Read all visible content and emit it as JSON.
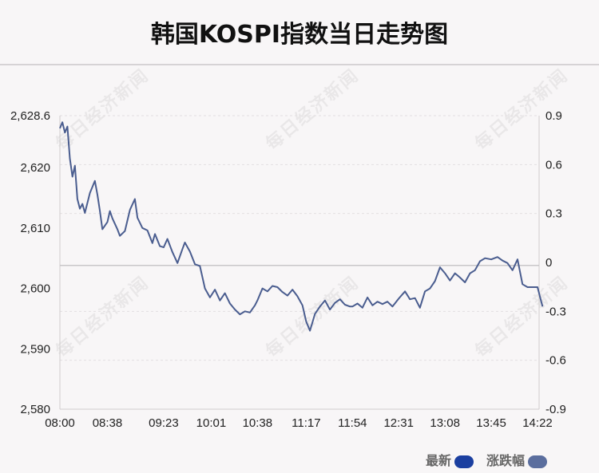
{
  "title": "韩国KOSPI指数当日走势图",
  "legend": [
    {
      "label": "最新",
      "color": "#1b3fa0"
    },
    {
      "label": "涨跌幅",
      "color": "#5b6e9e"
    }
  ],
  "watermark": "每日经济新闻",
  "chart_data": {
    "type": "line",
    "x_ticks": [
      "08:00",
      "08:38",
      "09:23",
      "10:01",
      "10:38",
      "11:17",
      "11:54",
      "12:31",
      "13:08",
      "13:45",
      "14:22"
    ],
    "y_left_ticks": [
      "2,580",
      "2,590",
      "2,600",
      "2,610",
      "2,620",
      "2,628.6"
    ],
    "y_left_values": [
      2580,
      2590,
      2600,
      2610,
      2620,
      2628.6
    ],
    "y_right_ticks": [
      "0.9",
      "0.6",
      "0.3",
      "0",
      "-0.3",
      "-0.6",
      "-0.9"
    ],
    "y_right_values": [
      0.9,
      0.6,
      0.3,
      0,
      -0.3,
      -0.6,
      -0.9
    ],
    "ylim_left": [
      2580,
      2628.6
    ],
    "ylim_right": [
      -0.9,
      0.9
    ],
    "reference_level": 2603.8,
    "line_color": "#4a5d8f",
    "grid": "dashed horizontal",
    "points": [
      [
        "08:00",
        2626.5
      ],
      [
        "08:02",
        2627.5
      ],
      [
        "08:04",
        2625.8
      ],
      [
        "08:06",
        2626.8
      ],
      [
        "08:08",
        2621.5
      ],
      [
        "08:10",
        2618.5
      ],
      [
        "08:12",
        2620.3
      ],
      [
        "08:14",
        2614.8
      ],
      [
        "08:16",
        2613.2
      ],
      [
        "08:18",
        2614.0
      ],
      [
        "08:20",
        2612.5
      ],
      [
        "08:24",
        2615.8
      ],
      [
        "08:28",
        2617.8
      ],
      [
        "08:30",
        2615.5
      ],
      [
        "08:32",
        2612.8
      ],
      [
        "08:34",
        2609.8
      ],
      [
        "08:38",
        2611.0
      ],
      [
        "08:40",
        2612.8
      ],
      [
        "08:42",
        2611.6
      ],
      [
        "08:46",
        2609.8
      ],
      [
        "08:48",
        2608.7
      ],
      [
        "08:52",
        2609.5
      ],
      [
        "08:56",
        2613.0
      ],
      [
        "09:00",
        2614.8
      ],
      [
        "09:02",
        2611.7
      ],
      [
        "09:06",
        2610.0
      ],
      [
        "09:10",
        2609.6
      ],
      [
        "09:14",
        2607.5
      ],
      [
        "09:16",
        2609.0
      ],
      [
        "09:20",
        2607.0
      ],
      [
        "09:23",
        2606.8
      ],
      [
        "09:26",
        2608.2
      ],
      [
        "09:30",
        2606.0
      ],
      [
        "09:34",
        2604.2
      ],
      [
        "09:38",
        2606.5
      ],
      [
        "09:40",
        2607.6
      ],
      [
        "09:44",
        2606.1
      ],
      [
        "09:48",
        2604.0
      ],
      [
        "09:52",
        2603.7
      ],
      [
        "09:56",
        2600.0
      ],
      [
        "10:00",
        2598.5
      ],
      [
        "10:04",
        2599.8
      ],
      [
        "10:08",
        2598.0
      ],
      [
        "10:12",
        2599.2
      ],
      [
        "10:16",
        2597.5
      ],
      [
        "10:20",
        2596.5
      ],
      [
        "10:24",
        2595.7
      ],
      [
        "10:28",
        2596.2
      ],
      [
        "10:32",
        2596.0
      ],
      [
        "10:36",
        2597.2
      ],
      [
        "10:38",
        2598.0
      ],
      [
        "10:42",
        2600.0
      ],
      [
        "10:46",
        2599.5
      ],
      [
        "10:50",
        2600.4
      ],
      [
        "10:54",
        2600.2
      ],
      [
        "10:58",
        2599.4
      ],
      [
        "11:02",
        2598.8
      ],
      [
        "11:06",
        2599.8
      ],
      [
        "11:10",
        2598.7
      ],
      [
        "11:14",
        2597.2
      ],
      [
        "11:17",
        2594.5
      ],
      [
        "11:20",
        2593.0
      ],
      [
        "11:24",
        2595.8
      ],
      [
        "11:28",
        2597.0
      ],
      [
        "11:32",
        2598.0
      ],
      [
        "11:36",
        2596.5
      ],
      [
        "11:40",
        2597.6
      ],
      [
        "11:44",
        2598.2
      ],
      [
        "11:48",
        2597.3
      ],
      [
        "11:52",
        2597.0
      ],
      [
        "11:54",
        2597.0
      ],
      [
        "11:58",
        2597.5
      ],
      [
        "12:02",
        2596.8
      ],
      [
        "12:06",
        2598.5
      ],
      [
        "12:10",
        2597.2
      ],
      [
        "12:14",
        2597.8
      ],
      [
        "12:18",
        2597.4
      ],
      [
        "12:22",
        2597.8
      ],
      [
        "12:26",
        2597.0
      ],
      [
        "12:31",
        2598.3
      ],
      [
        "12:36",
        2599.5
      ],
      [
        "12:40",
        2598.2
      ],
      [
        "12:44",
        2598.4
      ],
      [
        "12:48",
        2596.8
      ],
      [
        "12:52",
        2599.5
      ],
      [
        "12:56",
        2600.0
      ],
      [
        "13:00",
        2601.2
      ],
      [
        "13:04",
        2603.5
      ],
      [
        "13:08",
        2602.5
      ],
      [
        "13:12",
        2601.3
      ],
      [
        "13:16",
        2602.5
      ],
      [
        "13:20",
        2601.8
      ],
      [
        "13:24",
        2601.0
      ],
      [
        "13:28",
        2602.5
      ],
      [
        "13:32",
        2603.0
      ],
      [
        "13:36",
        2604.5
      ],
      [
        "13:40",
        2605.0
      ],
      [
        "13:45",
        2604.8
      ],
      [
        "13:50",
        2605.2
      ],
      [
        "13:54",
        2604.6
      ],
      [
        "13:58",
        2604.2
      ],
      [
        "14:02",
        2603.0
      ],
      [
        "14:06",
        2604.8
      ],
      [
        "14:10",
        2600.7
      ],
      [
        "14:14",
        2600.2
      ],
      [
        "14:18",
        2600.2
      ],
      [
        "14:22",
        2600.2
      ],
      [
        "14:26",
        2597.0
      ]
    ]
  }
}
